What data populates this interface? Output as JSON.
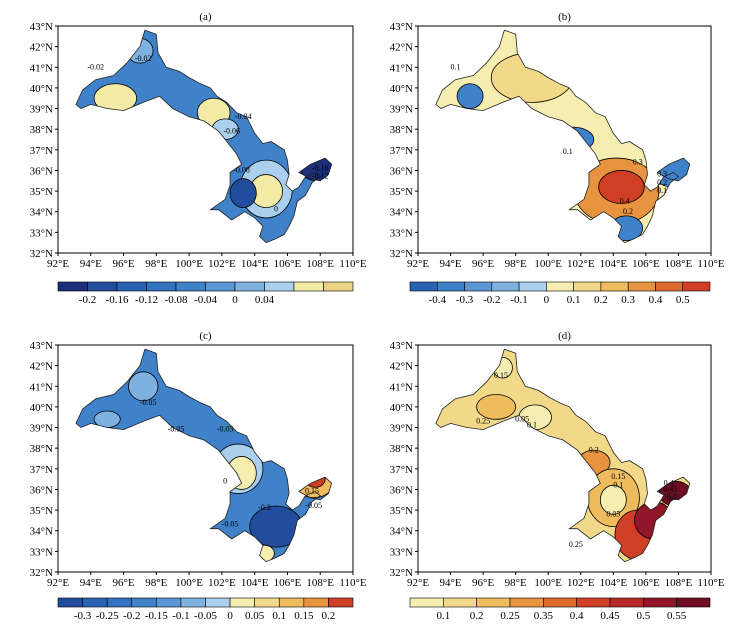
{
  "lon_ticks": [
    "92°E",
    "94°E",
    "96°E",
    "98°E",
    "100°E",
    "102°E",
    "104°E",
    "106°E",
    "108°E",
    "110°E"
  ],
  "lat_ticks": [
    "32°N",
    "33°N",
    "34°N",
    "35°N",
    "36°N",
    "37°N",
    "38°N",
    "39°N",
    "40°N",
    "41°N",
    "42°N",
    "43°N"
  ],
  "panels": [
    {
      "title": "(a)",
      "bg": "#3f82c9",
      "colorbar": {
        "labels": [
          "-0.2",
          "-0.16",
          "-0.12",
          "-0.08",
          "-0.04",
          "0",
          "0.04"
        ],
        "colors": [
          "#1b2f7a",
          "#224c9c",
          "#2a63b3",
          "#3272bf",
          "#3f82c9",
          "#5a97d4",
          "#7fb1e0",
          "#aad0ee",
          "#f3eaa6",
          "#ecd486"
        ]
      },
      "blobs": [
        {
          "cx": 95.5,
          "cy": 39.5,
          "rx": 1.3,
          "ry": 0.7,
          "color": "#f3eaa6"
        },
        {
          "cx": 101.5,
          "cy": 38.8,
          "rx": 1.0,
          "ry": 0.7,
          "color": "#f3eaa6"
        },
        {
          "cx": 104.7,
          "cy": 35.1,
          "rx": 1.6,
          "ry": 1.4,
          "color": "#aad0ee"
        },
        {
          "cx": 104.7,
          "cy": 35.0,
          "rx": 1.0,
          "ry": 0.8,
          "color": "#f3eaa6"
        },
        {
          "cx": 97.0,
          "cy": 41.8,
          "rx": 0.8,
          "ry": 0.6,
          "color": "#7fb1e0"
        },
        {
          "cx": 107.8,
          "cy": 36.1,
          "rx": 1.0,
          "ry": 0.6,
          "color": "#1b2f7a"
        },
        {
          "cx": 103.3,
          "cy": 34.9,
          "rx": 0.8,
          "ry": 0.7,
          "color": "#224c9c"
        },
        {
          "cx": 102.2,
          "cy": 38.0,
          "rx": 0.8,
          "ry": 0.5,
          "color": "#aad0ee"
        }
      ],
      "labels": [
        {
          "t": "-0.02",
          "lon": 94.3,
          "lat": 40.9
        },
        {
          "t": "-0.02",
          "lon": 97.2,
          "lat": 41.3
        },
        {
          "t": "-0.04",
          "lon": 103.3,
          "lat": 38.5
        },
        {
          "t": "-0.06",
          "lon": 102.6,
          "lat": 37.8
        },
        {
          "t": "-0.08",
          "lon": 103.2,
          "lat": 35.9
        },
        {
          "t": "-0.16",
          "lon": 108.0,
          "lat": 36.0
        },
        {
          "t": "-0.12",
          "lon": 108.0,
          "lat": 35.6
        },
        {
          "t": "0",
          "lon": 105.3,
          "lat": 34.0
        }
      ]
    },
    {
      "title": "(b)",
      "bg": "#f5eeb0",
      "colorbar": {
        "labels": [
          "-0.4",
          "-0.3",
          "-0.2",
          "-0.1",
          "0",
          "0.1",
          "0.2",
          "0.3",
          "0.4",
          "0.5"
        ],
        "colors": [
          "#2a63b3",
          "#3f82c9",
          "#5a97d4",
          "#7fb1e0",
          "#aad0ee",
          "#f5eeb0",
          "#f2d98a",
          "#eebc5c",
          "#e8933f",
          "#de6a2e",
          "#cf3f26"
        ]
      },
      "blobs": [
        {
          "cx": 95.2,
          "cy": 39.6,
          "rx": 0.8,
          "ry": 0.6,
          "color": "#3f82c9"
        },
        {
          "cx": 101.5,
          "cy": 37.5,
          "rx": 1.3,
          "ry": 0.6,
          "color": "#3f82c9"
        },
        {
          "cx": 107.6,
          "cy": 36.0,
          "rx": 1.2,
          "ry": 0.8,
          "color": "#3f82c9"
        },
        {
          "cx": 104.2,
          "cy": 35.0,
          "rx": 2.6,
          "ry": 1.6,
          "color": "#e8933f"
        },
        {
          "cx": 104.5,
          "cy": 35.2,
          "rx": 1.4,
          "ry": 0.8,
          "color": "#cf3f26"
        },
        {
          "cx": 104.8,
          "cy": 33.2,
          "rx": 1.0,
          "ry": 0.6,
          "color": "#3f82c9"
        },
        {
          "cx": 99.0,
          "cy": 40.5,
          "rx": 2.5,
          "ry": 1.2,
          "color": "#f2d98a"
        }
      ],
      "labels": [
        {
          "t": "0.1",
          "lon": 94.3,
          "lat": 40.9
        },
        {
          "t": "0.1",
          "lon": 101.2,
          "lat": 36.8
        },
        {
          "t": "0.3",
          "lon": 105.5,
          "lat": 36.3
        },
        {
          "t": "0.4",
          "lon": 104.7,
          "lat": 34.4
        },
        {
          "t": "0.2",
          "lon": 104.9,
          "lat": 33.9
        },
        {
          "t": "0.3",
          "lon": 107.0,
          "lat": 35.7
        },
        {
          "t": "0.2",
          "lon": 107.0,
          "lat": 35.3
        },
        {
          "t": "0.1",
          "lon": 107.0,
          "lat": 34.9
        }
      ]
    },
    {
      "title": "(c)",
      "bg": "#3f82c9",
      "colorbar": {
        "labels": [
          "-0.3",
          "-0.25",
          "-0.2",
          "-0.15",
          "-0.1",
          "-0.05",
          "0",
          "0.05",
          "0.1",
          "0.15",
          "0.2"
        ],
        "colors": [
          "#224c9c",
          "#2a63b3",
          "#3272bf",
          "#3f82c9",
          "#5a97d4",
          "#7fb1e0",
          "#aad0ee",
          "#f5eeb0",
          "#f2d98a",
          "#eebc5c",
          "#e8933f",
          "#cf3f26"
        ]
      },
      "blobs": [
        {
          "cx": 97.2,
          "cy": 41.0,
          "rx": 0.9,
          "ry": 0.7,
          "color": "#7fb1e0"
        },
        {
          "cx": 95.0,
          "cy": 39.4,
          "rx": 0.8,
          "ry": 0.4,
          "color": "#7fb1e0"
        },
        {
          "cx": 103.0,
          "cy": 37.0,
          "rx": 1.5,
          "ry": 1.2,
          "color": "#aad0ee"
        },
        {
          "cx": 103.2,
          "cy": 36.8,
          "rx": 0.9,
          "ry": 0.8,
          "color": "#f5eeb0"
        },
        {
          "cx": 105.3,
          "cy": 34.2,
          "rx": 1.6,
          "ry": 1.0,
          "color": "#224c9c"
        },
        {
          "cx": 107.6,
          "cy": 36.3,
          "rx": 1.2,
          "ry": 0.7,
          "color": "#eebc5c"
        },
        {
          "cx": 107.7,
          "cy": 36.5,
          "rx": 0.6,
          "ry": 0.4,
          "color": "#cf3f26"
        },
        {
          "cx": 104.6,
          "cy": 32.9,
          "rx": 0.6,
          "ry": 0.4,
          "color": "#f5eeb0"
        }
      ],
      "labels": [
        {
          "t": "-0.05",
          "lon": 97.5,
          "lat": 40.1
        },
        {
          "t": "-0.05",
          "lon": 99.2,
          "lat": 38.8
        },
        {
          "t": "-0.05",
          "lon": 102.2,
          "lat": 38.8
        },
        {
          "t": "0",
          "lon": 102.2,
          "lat": 36.3
        },
        {
          "t": "-0.2",
          "lon": 104.6,
          "lat": 35.0
        },
        {
          "t": "0.15",
          "lon": 107.5,
          "lat": 35.8
        },
        {
          "t": "-0.05",
          "lon": 107.6,
          "lat": 35.1
        },
        {
          "t": "-0.05",
          "lon": 102.5,
          "lat": 34.2
        }
      ]
    },
    {
      "title": "(d)",
      "bg": "#f2d98a",
      "colorbar": {
        "labels": [
          "0.1",
          "0.2",
          "0.25",
          "0.35",
          "0.4",
          "0.45",
          "0.5",
          "0.55"
        ],
        "colors": [
          "#f5eeb0",
          "#f2d98a",
          "#eebc5c",
          "#e8933f",
          "#de6a2e",
          "#cf3f26",
          "#b8272a",
          "#93152a",
          "#6e0d23"
        ]
      },
      "blobs": [
        {
          "cx": 96.8,
          "cy": 40.0,
          "rx": 1.2,
          "ry": 0.6,
          "color": "#eebc5c"
        },
        {
          "cx": 97.2,
          "cy": 41.9,
          "rx": 0.6,
          "ry": 0.5,
          "color": "#f5eeb0"
        },
        {
          "cx": 99.2,
          "cy": 39.5,
          "rx": 1.0,
          "ry": 0.6,
          "color": "#f5eeb0"
        },
        {
          "cx": 102.8,
          "cy": 37.3,
          "rx": 1.0,
          "ry": 0.6,
          "color": "#e8933f"
        },
        {
          "cx": 104.0,
          "cy": 35.6,
          "rx": 1.6,
          "ry": 1.4,
          "color": "#eebc5c"
        },
        {
          "cx": 104.0,
          "cy": 35.5,
          "rx": 0.8,
          "ry": 0.7,
          "color": "#f5eeb0"
        },
        {
          "cx": 105.5,
          "cy": 33.8,
          "rx": 1.4,
          "ry": 1.2,
          "color": "#cf3f26"
        },
        {
          "cx": 106.5,
          "cy": 34.5,
          "rx": 1.2,
          "ry": 0.9,
          "color": "#93152a"
        },
        {
          "cx": 107.8,
          "cy": 35.8,
          "rx": 1.0,
          "ry": 0.6,
          "color": "#6e0d23"
        }
      ],
      "labels": [
        {
          "t": "0.15",
          "lon": 97.1,
          "lat": 41.4
        },
        {
          "t": "0.25",
          "lon": 96.0,
          "lat": 39.2
        },
        {
          "t": "0.05",
          "lon": 98.4,
          "lat": 39.3
        },
        {
          "t": "0.1",
          "lon": 99.0,
          "lat": 39.0
        },
        {
          "t": "0.2",
          "lon": 102.8,
          "lat": 37.8
        },
        {
          "t": "0.15",
          "lon": 104.3,
          "lat": 36.5
        },
        {
          "t": "0.1",
          "lon": 104.3,
          "lat": 36.1
        },
        {
          "t": "0.05",
          "lon": 104.0,
          "lat": 34.7
        },
        {
          "t": "0.45",
          "lon": 107.5,
          "lat": 35.9
        },
        {
          "t": "0.5",
          "lon": 107.6,
          "lat": 35.5
        },
        {
          "t": "0.4",
          "lon": 107.4,
          "lat": 36.2
        },
        {
          "t": "0.25",
          "lon": 101.7,
          "lat": 33.2
        }
      ]
    }
  ]
}
